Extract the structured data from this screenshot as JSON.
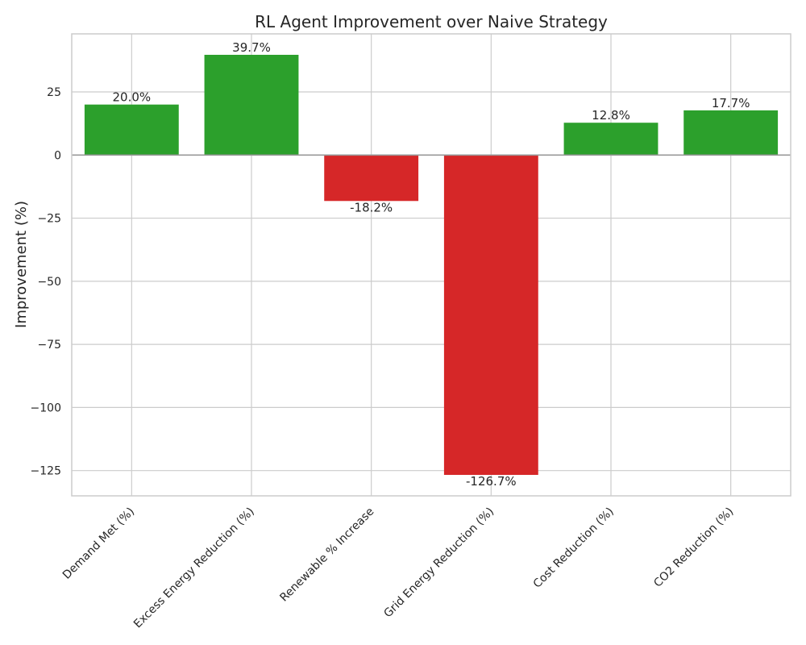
{
  "chart_data": {
    "type": "bar",
    "title": "RL Agent Improvement over Naive Strategy",
    "xlabel": "",
    "ylabel": "Improvement (%)",
    "categories": [
      "Demand Met (%)",
      "Excess Energy Reduction (%)",
      "Renewable % Increase",
      "Grid Energy Reduction (%)",
      "Cost Reduction (%)",
      "CO2 Reduction (%)"
    ],
    "values": [
      20.0,
      39.7,
      -18.2,
      -126.7,
      12.8,
      17.7
    ],
    "value_labels": [
      "20.0%",
      "39.7%",
      "-18.2%",
      "-126.7%",
      "12.8%",
      "17.7%"
    ],
    "ylim": [
      -135,
      48
    ],
    "yticks": [
      25,
      0,
      -25,
      -50,
      -75,
      -100,
      -125
    ],
    "ytick_labels": [
      "25",
      "0",
      "−25",
      "−50",
      "−75",
      "−100",
      "−125"
    ],
    "grid": true,
    "colors": {
      "positive": "#2ca02c",
      "negative": "#d62728",
      "grid": "#cccccc",
      "zero_line": "#999999",
      "frame": "#cccccc"
    }
  }
}
